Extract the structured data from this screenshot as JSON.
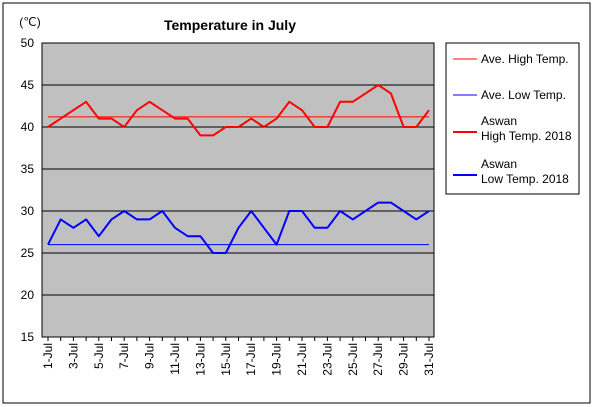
{
  "chart_data": {
    "type": "line",
    "title": "Temperature in July",
    "unit_label": "(℃)",
    "ylim": [
      15,
      50
    ],
    "yticks": [
      15,
      20,
      25,
      30,
      35,
      40,
      45,
      50
    ],
    "xticks": [
      "1-Jul",
      "3-Jul",
      "5-Jul",
      "7-Jul",
      "9-Jul",
      "11-Jul",
      "13-Jul",
      "15-Jul",
      "17-Jul",
      "19-Jul",
      "21-Jul",
      "23-Jul",
      "25-Jul",
      "27-Jul",
      "29-Jul",
      "31-Jul"
    ],
    "days": [
      1,
      2,
      3,
      4,
      5,
      6,
      7,
      8,
      9,
      10,
      11,
      12,
      13,
      14,
      15,
      16,
      17,
      18,
      19,
      20,
      21,
      22,
      23,
      24,
      25,
      26,
      27,
      28,
      29,
      30,
      31
    ],
    "grid": true,
    "legend_position": "right",
    "plot_bg": "#c0c0c0",
    "series": [
      {
        "name": "Ave. High Temp.",
        "color": "#ff0000",
        "style": "thin",
        "values": [
          41.2,
          41.2,
          41.2,
          41.2,
          41.2,
          41.2,
          41.2,
          41.2,
          41.2,
          41.2,
          41.2,
          41.2,
          41.2,
          41.2,
          41.2,
          41.2,
          41.2,
          41.2,
          41.2,
          41.2,
          41.2,
          41.2,
          41.2,
          41.2,
          41.2,
          41.2,
          41.2,
          41.2,
          41.2,
          41.2,
          41.2
        ]
      },
      {
        "name": "Ave. Low Temp.",
        "color": "#0000ff",
        "style": "thin",
        "values": [
          26,
          26,
          26,
          26,
          26,
          26,
          26,
          26,
          26,
          26,
          26,
          26,
          26,
          26,
          26,
          26,
          26,
          26,
          26,
          26,
          26,
          26,
          26,
          26,
          26,
          26,
          26,
          26,
          26,
          26,
          26
        ]
      },
      {
        "name": "Aswan\nHigh Temp. 2018",
        "color": "#ff0000",
        "style": "thick",
        "values": [
          40,
          41,
          42,
          43,
          41,
          41,
          40,
          42,
          43,
          42,
          41,
          41,
          39,
          39,
          40,
          40,
          41,
          40,
          41,
          43,
          42,
          40,
          40,
          43,
          43,
          44,
          45,
          44,
          40,
          40,
          42
        ]
      },
      {
        "name": "Aswan\nLow Temp. 2018",
        "color": "#0000ff",
        "style": "thick",
        "values": [
          26,
          29,
          28,
          29,
          27,
          29,
          30,
          29,
          29,
          30,
          28,
          27,
          27,
          25,
          25,
          28,
          30,
          28,
          26,
          30,
          30,
          28,
          28,
          30,
          29,
          30,
          31,
          31,
          30,
          29,
          30
        ]
      }
    ]
  }
}
